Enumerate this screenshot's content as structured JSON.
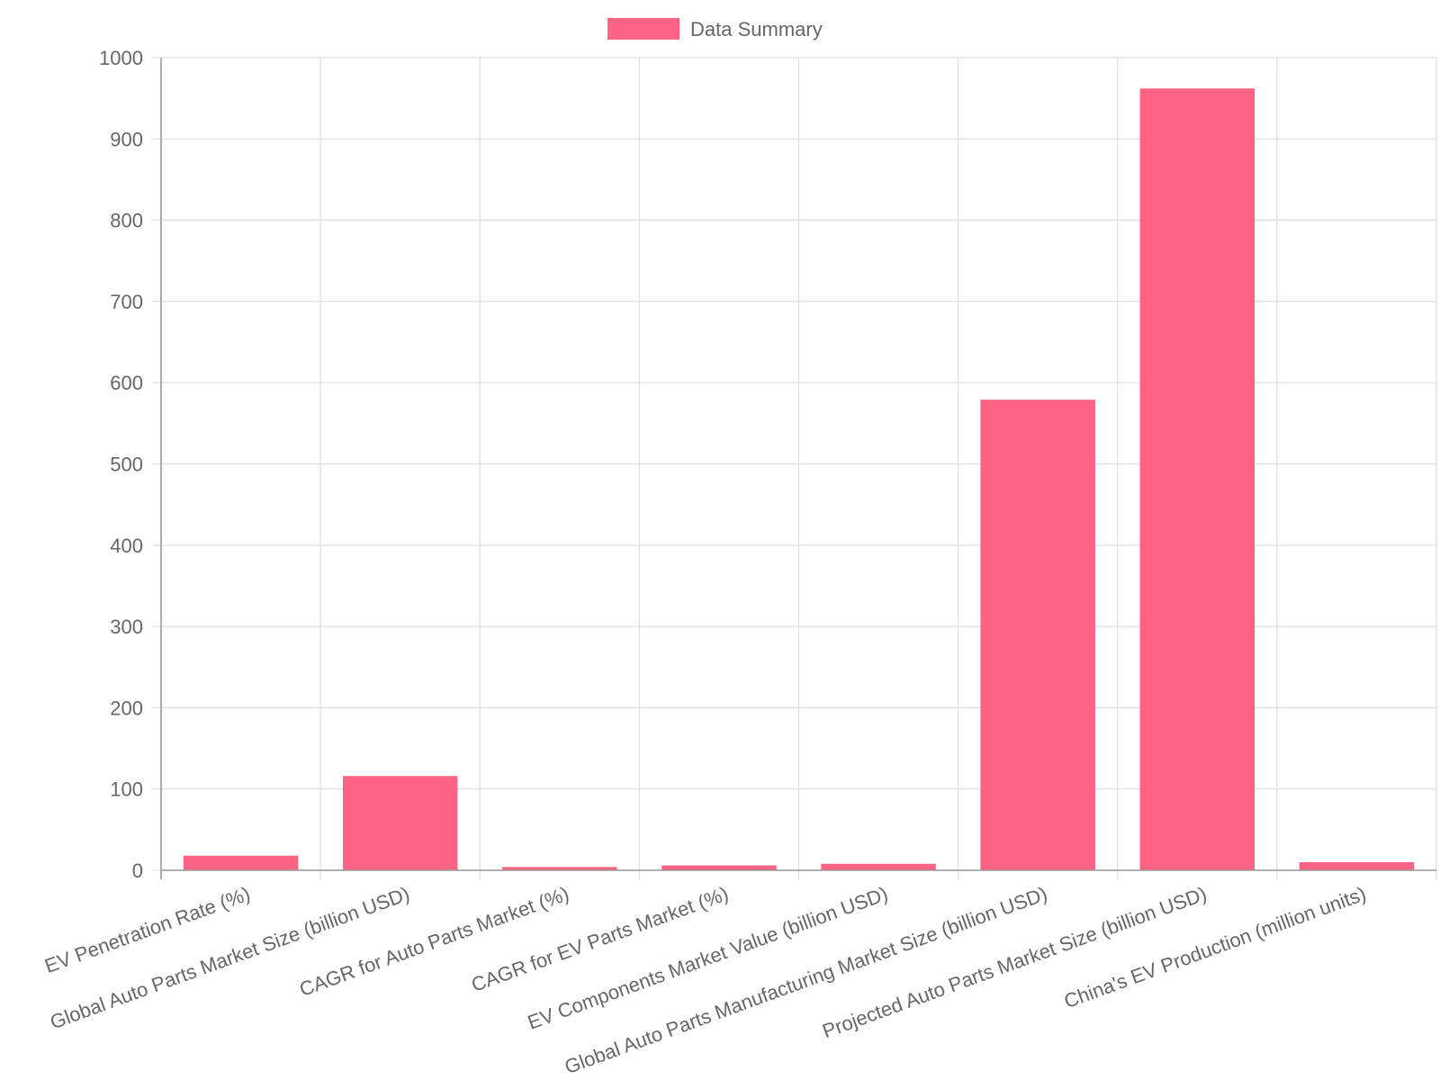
{
  "chart_data": {
    "type": "bar",
    "title": "",
    "xlabel": "",
    "ylabel": "",
    "categories": [
      "EV Penetration Rate (%)",
      "Global Auto Parts Market Size (billion USD)",
      "CAGR for Auto Parts Market (%)",
      "CAGR for EV Parts Market (%)",
      "EV Components Market Value (billion USD)",
      "Global Auto Parts Manufacturing Market Size (billion USD)",
      "Projected Auto Parts Market Size (billion USD)",
      "China's EV Production (million units)"
    ],
    "series": [
      {
        "name": "Data Summary",
        "color": "#ff6384",
        "values": [
          18,
          116,
          4,
          6,
          8,
          579,
          962,
          10
        ]
      }
    ],
    "ylim": [
      0,
      1000
    ],
    "yticks": [
      0,
      100,
      200,
      300,
      400,
      500,
      600,
      700,
      800,
      900,
      1000
    ],
    "grid": true,
    "legend_position": "top"
  }
}
